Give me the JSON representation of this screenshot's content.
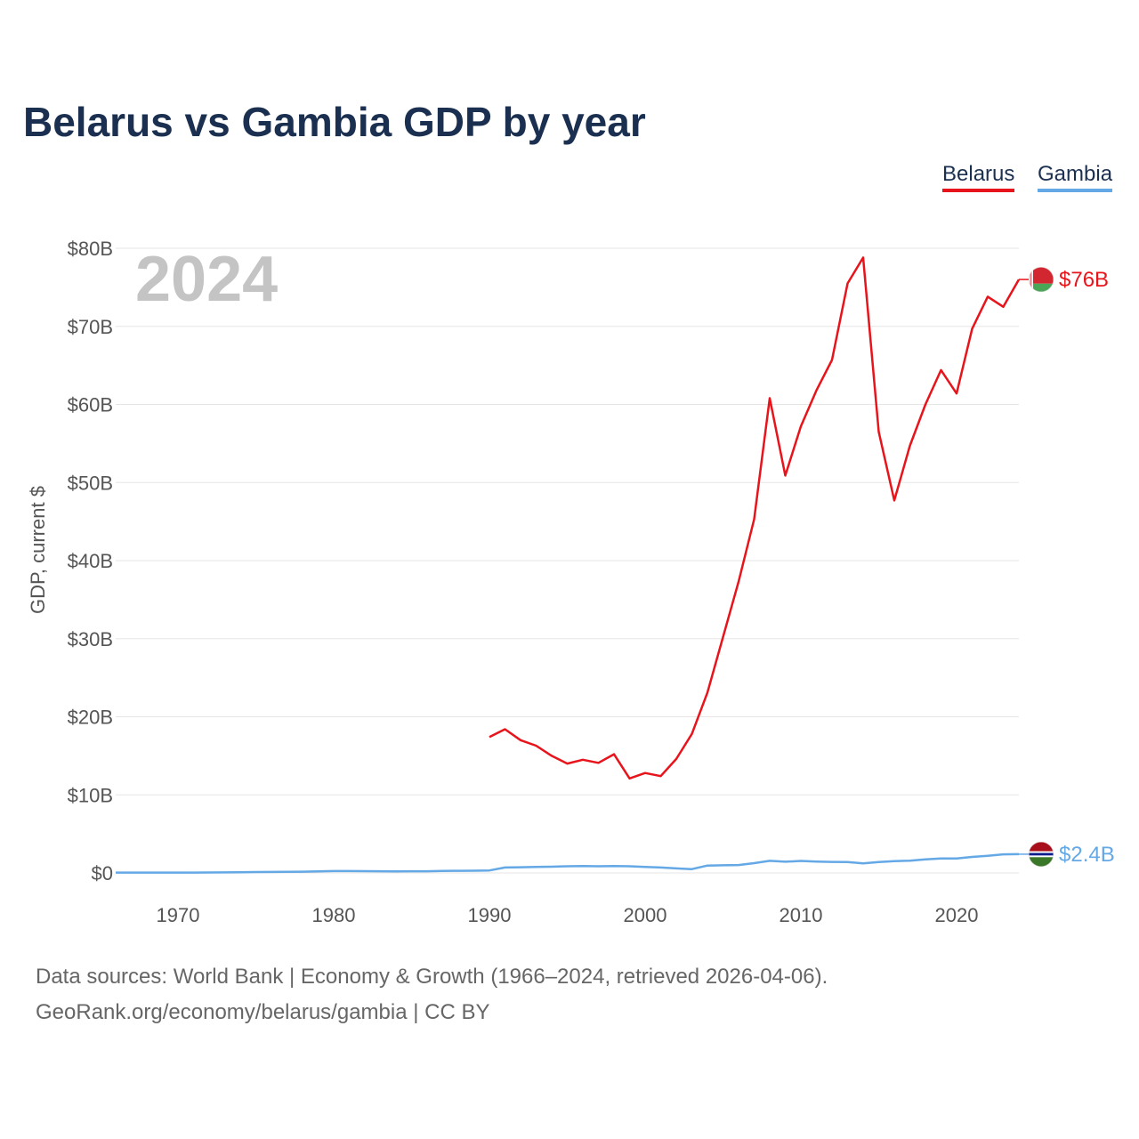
{
  "title": "Belarus vs Gambia GDP by year",
  "colors": {
    "belarus": "#e8141b",
    "gambia": "#64a8e6",
    "grid": "#e6e6e6",
    "year": "#c4c4c4"
  },
  "chart_data": {
    "type": "line",
    "title": "Belarus vs Gambia GDP by year",
    "ylabel": "GDP, current $",
    "xlabel": "",
    "xlim": [
      1966,
      2024
    ],
    "ylim": [
      0,
      80
    ],
    "units": "billions of current US$",
    "year_label": "2024",
    "x_ticks": [
      {
        "value": 1970,
        "label": "1970"
      },
      {
        "value": 1980,
        "label": "1980"
      },
      {
        "value": 1990,
        "label": "1990"
      },
      {
        "value": 2000,
        "label": "2000"
      },
      {
        "value": 2010,
        "label": "2010"
      },
      {
        "value": 2020,
        "label": "2020"
      }
    ],
    "y_ticks": [
      {
        "value": 0,
        "label": "$0"
      },
      {
        "value": 10,
        "label": "$10B"
      },
      {
        "value": 20,
        "label": "$20B"
      },
      {
        "value": 30,
        "label": "$30B"
      },
      {
        "value": 40,
        "label": "$40B"
      },
      {
        "value": 50,
        "label": "$50B"
      },
      {
        "value": 60,
        "label": "$60B"
      },
      {
        "value": 70,
        "label": "$70B"
      },
      {
        "value": 80,
        "label": "$80B"
      }
    ],
    "legend": [
      "Belarus",
      "Gambia"
    ],
    "legend_position": "top-right",
    "series": [
      {
        "name": "Belarus",
        "key": "belarus",
        "end_label": "$76B",
        "flag": "belarus",
        "x": [
          1990,
          1991,
          1992,
          1993,
          1994,
          1995,
          1996,
          1997,
          1998,
          1999,
          2000,
          2001,
          2002,
          2003,
          2004,
          2005,
          2006,
          2007,
          2008,
          2009,
          2010,
          2011,
          2012,
          2013,
          2014,
          2015,
          2016,
          2017,
          2018,
          2019,
          2020,
          2021,
          2022,
          2023,
          2024
        ],
        "values": [
          17.4,
          18.4,
          17.0,
          16.3,
          15.0,
          14.0,
          14.5,
          14.1,
          15.2,
          12.1,
          12.8,
          12.4,
          14.6,
          17.8,
          23.1,
          30.2,
          37.3,
          45.3,
          60.8,
          50.9,
          57.2,
          61.8,
          65.7,
          75.5,
          78.8,
          56.5,
          47.7,
          54.7,
          60.0,
          64.4,
          61.4,
          69.7,
          73.8,
          72.5,
          76.0
        ]
      },
      {
        "name": "Gambia",
        "key": "gambia",
        "end_label": "$2.4B",
        "flag": "gambia",
        "x": [
          1966,
          1967,
          1968,
          1969,
          1970,
          1971,
          1972,
          1973,
          1974,
          1975,
          1976,
          1977,
          1978,
          1979,
          1980,
          1981,
          1982,
          1983,
          1984,
          1985,
          1986,
          1987,
          1988,
          1989,
          1990,
          1991,
          1992,
          1993,
          1994,
          1995,
          1996,
          1997,
          1998,
          1999,
          2000,
          2001,
          2002,
          2003,
          2004,
          2005,
          2006,
          2007,
          2008,
          2009,
          2010,
          2011,
          2012,
          2013,
          2014,
          2015,
          2016,
          2017,
          2018,
          2019,
          2020,
          2021,
          2022,
          2023,
          2024
        ],
        "values": [
          0.04,
          0.04,
          0.04,
          0.05,
          0.05,
          0.05,
          0.06,
          0.07,
          0.09,
          0.11,
          0.12,
          0.14,
          0.16,
          0.2,
          0.24,
          0.24,
          0.23,
          0.22,
          0.2,
          0.22,
          0.22,
          0.25,
          0.27,
          0.28,
          0.32,
          0.7,
          0.73,
          0.78,
          0.8,
          0.85,
          0.88,
          0.86,
          0.89,
          0.86,
          0.78,
          0.69,
          0.58,
          0.49,
          0.95,
          0.98,
          1.01,
          1.25,
          1.55,
          1.44,
          1.54,
          1.46,
          1.41,
          1.39,
          1.23,
          1.4,
          1.5,
          1.57,
          1.74,
          1.85,
          1.85,
          2.05,
          2.2,
          2.38,
          2.4
        ]
      }
    ]
  },
  "footer": {
    "source": "Data sources: World Bank | Economy & Growth (1966–2024, retrieved 2026-04-06).",
    "attribution": "GeoRank.org/economy/belarus/gambia | CC BY"
  }
}
